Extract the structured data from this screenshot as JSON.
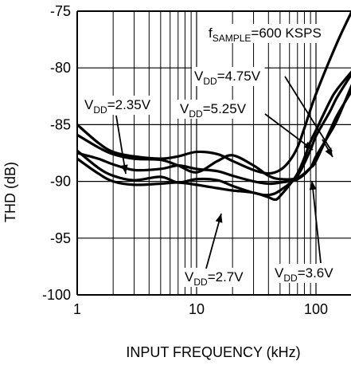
{
  "chart_data": {
    "type": "line",
    "title": "",
    "xlabel": "INPUT FREQUENCY (kHz)",
    "ylabel": "THD (dB)",
    "xscale": "log",
    "xlim": [
      1,
      200
    ],
    "ylim": [
      -100,
      -75
    ],
    "xticks": [
      1,
      10,
      100
    ],
    "xtick_labels": [
      "1",
      "10",
      "100"
    ],
    "yticks": [
      -100,
      -95,
      -90,
      -85,
      -80,
      -75
    ],
    "ytick_labels": [
      "-100",
      "-95",
      "-90",
      "-85",
      "-80",
      "-75"
    ],
    "grid": true,
    "legend": "none",
    "colors": {
      "line": "#000000",
      "grid": "#000000",
      "background": "#ffffff"
    },
    "condition_label": {
      "main": "f",
      "sub": "SAMPLE",
      "rest": "=600 KSPS"
    },
    "series": [
      {
        "label_main": "V",
        "label_sub": "DD",
        "label_rest": "=4.75V",
        "points": [
          [
            1,
            -85.0
          ],
          [
            1.5,
            -86.6
          ],
          [
            2,
            -87.4
          ],
          [
            3,
            -87.8
          ],
          [
            5,
            -88.0
          ],
          [
            7,
            -87.8
          ],
          [
            10,
            -87.4
          ],
          [
            15,
            -87.6
          ],
          [
            20,
            -88.2
          ],
          [
            30,
            -89.0
          ],
          [
            40,
            -89.3
          ],
          [
            50,
            -89.0
          ],
          [
            60,
            -88.2
          ],
          [
            70,
            -87.0
          ],
          [
            80,
            -85.3
          ],
          [
            100,
            -82.3
          ],
          [
            150,
            -77.8
          ],
          [
            200,
            -75.0
          ]
        ]
      },
      {
        "label_main": "V",
        "label_sub": "DD",
        "label_rest": "=5.25V",
        "points": [
          [
            1,
            -85.9
          ],
          [
            1.5,
            -87.0
          ],
          [
            2,
            -87.6
          ],
          [
            3,
            -88.0
          ],
          [
            5,
            -88.1
          ],
          [
            7,
            -88.6
          ],
          [
            10,
            -89.2
          ],
          [
            15,
            -88.2
          ],
          [
            20,
            -87.7
          ],
          [
            30,
            -88.6
          ],
          [
            40,
            -89.5
          ],
          [
            50,
            -89.8
          ],
          [
            70,
            -89.7
          ],
          [
            90,
            -88.8
          ],
          [
            100,
            -88.2
          ],
          [
            130,
            -85.6
          ],
          [
            150,
            -84.2
          ],
          [
            200,
            -82.0
          ]
        ]
      },
      {
        "label_main": "V",
        "label_sub": "DD",
        "label_rest": "=2.35V",
        "points": [
          [
            1,
            -87.5
          ],
          [
            1.5,
            -88.0
          ],
          [
            2,
            -88.5
          ],
          [
            3,
            -89.0
          ],
          [
            5,
            -88.9
          ],
          [
            7,
            -88.6
          ],
          [
            10,
            -88.9
          ],
          [
            15,
            -89.1
          ],
          [
            20,
            -89.5
          ],
          [
            30,
            -90.0
          ],
          [
            40,
            -90.2
          ],
          [
            50,
            -90.1
          ],
          [
            70,
            -89.8
          ],
          [
            90,
            -88.8
          ],
          [
            100,
            -87.8
          ],
          [
            130,
            -85.8
          ],
          [
            150,
            -84.6
          ],
          [
            200,
            -81.5
          ]
        ]
      },
      {
        "label_main": "V",
        "label_sub": "DD",
        "label_rest": "=2.7V",
        "points": [
          [
            1,
            -87.3
          ],
          [
            1.5,
            -88.8
          ],
          [
            2,
            -89.5
          ],
          [
            3,
            -89.9
          ],
          [
            5,
            -89.6
          ],
          [
            7,
            -90.1
          ],
          [
            10,
            -89.8
          ],
          [
            15,
            -89.9
          ],
          [
            20,
            -90.4
          ],
          [
            30,
            -91.0
          ],
          [
            40,
            -91.2
          ],
          [
            50,
            -90.8
          ],
          [
            70,
            -89.5
          ],
          [
            90,
            -87.2
          ],
          [
            100,
            -86.0
          ],
          [
            130,
            -83.9
          ],
          [
            150,
            -82.6
          ],
          [
            200,
            -80.5
          ]
        ]
      },
      {
        "label_main": "V",
        "label_sub": "DD",
        "label_rest": "=3.6V",
        "points": [
          [
            1,
            -88.0
          ],
          [
            1.5,
            -89.3
          ],
          [
            2,
            -90.0
          ],
          [
            3,
            -90.3
          ],
          [
            5,
            -90.2
          ],
          [
            7,
            -90.1
          ],
          [
            10,
            -90.3
          ],
          [
            15,
            -90.6
          ],
          [
            20,
            -90.8
          ],
          [
            30,
            -91.0
          ],
          [
            40,
            -91.4
          ],
          [
            45,
            -91.6
          ],
          [
            50,
            -91.3
          ],
          [
            70,
            -89.3
          ],
          [
            90,
            -86.5
          ],
          [
            100,
            -85.5
          ],
          [
            130,
            -83.0
          ],
          [
            150,
            -81.9
          ],
          [
            200,
            -80.3
          ]
        ]
      }
    ],
    "annotations": [
      {
        "series": 0,
        "anchor": "start"
      },
      {
        "series": 1,
        "anchor": "start"
      },
      {
        "series": 2,
        "anchor": "start"
      },
      {
        "series": 3,
        "anchor": "start"
      },
      {
        "series": 4,
        "anchor": "start"
      }
    ]
  }
}
